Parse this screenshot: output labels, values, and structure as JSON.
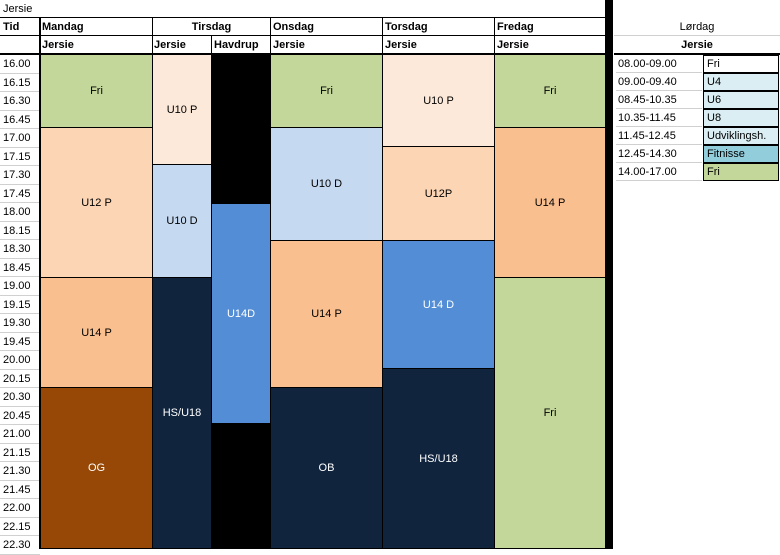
{
  "sheet_title": "Jersie",
  "headers": {
    "tid": "Tid",
    "days": {
      "mandag": "Mandag",
      "tirsdag": "Tirsdag",
      "onsdag": "Onsdag",
      "torsdag": "Torsdag",
      "fredag": "Fredag",
      "lordag": "Lørdag"
    },
    "venues": {
      "mandag": "Jersie",
      "tirsdag_a": "Jersie",
      "tirsdag_b": "Havdrup",
      "onsdag": "Jersie",
      "torsdag": "Jersie",
      "fredag": "Jersie",
      "lordag": "Jersie"
    }
  },
  "times": [
    "16.00",
    "16.15",
    "16.30",
    "16.45",
    "17.00",
    "17.15",
    "17.30",
    "17.45",
    "18.00",
    "18.15",
    "18.30",
    "18.45",
    "19.00",
    "19.15",
    "19.30",
    "19.45",
    "20.00",
    "20.15",
    "20.30",
    "20.45",
    "21.00",
    "21.15",
    "21.30",
    "21.45",
    "22.00",
    "22.15",
    "22.30"
  ],
  "colors": {
    "green": "#c4d79b",
    "peach_light": "#fde9d9",
    "peach": "#fcd5b4",
    "orange": "#fabf8f",
    "blue_light": "#c5d9f1",
    "blue": "#538dd5",
    "navy": "#10243e",
    "brown": "#974706",
    "black": "#000000",
    "teal": "#92cddc",
    "pale_blue": "#daeef3"
  },
  "blocks": {
    "mandag_fri": "Fri",
    "mandag_u12p": "U12 P",
    "mandag_u14p": "U14 P",
    "mandag_og": "OG",
    "tirsdag_u10p": "U10 P",
    "tirsdag_u10d": "U10 D",
    "tirsdag_hs_u18": "HS/U18",
    "havdrup_u14d": "U14D",
    "onsdag_fri": "Fri",
    "onsdag_u10d": "U10 D",
    "onsdag_u14p": "U14 P",
    "onsdag_ob": "OB",
    "torsdag_u10p": "U10 P",
    "torsdag_u12p": "U12P",
    "torsdag_u14d": "U14 D",
    "torsdag_hs_u18": "HS/U18",
    "fredag_fri_top": "Fri",
    "fredag_u14p": "U14 P",
    "fredag_fri_bottom": "Fri"
  },
  "saturday": [
    {
      "time": "08.00-09.00",
      "activity": "Fri"
    },
    {
      "time": "09.00-09.40",
      "activity": "U4"
    },
    {
      "time": "08.45-10.35",
      "activity": "U6"
    },
    {
      "time": "10.35-11.45",
      "activity": "U8"
    },
    {
      "time": "11.45-12.45",
      "activity": "Udviklingsh."
    },
    {
      "time": "12.45-14.30",
      "activity": "Fitnisse"
    },
    {
      "time": "14.00-17.00",
      "activity": "Fri"
    }
  ]
}
